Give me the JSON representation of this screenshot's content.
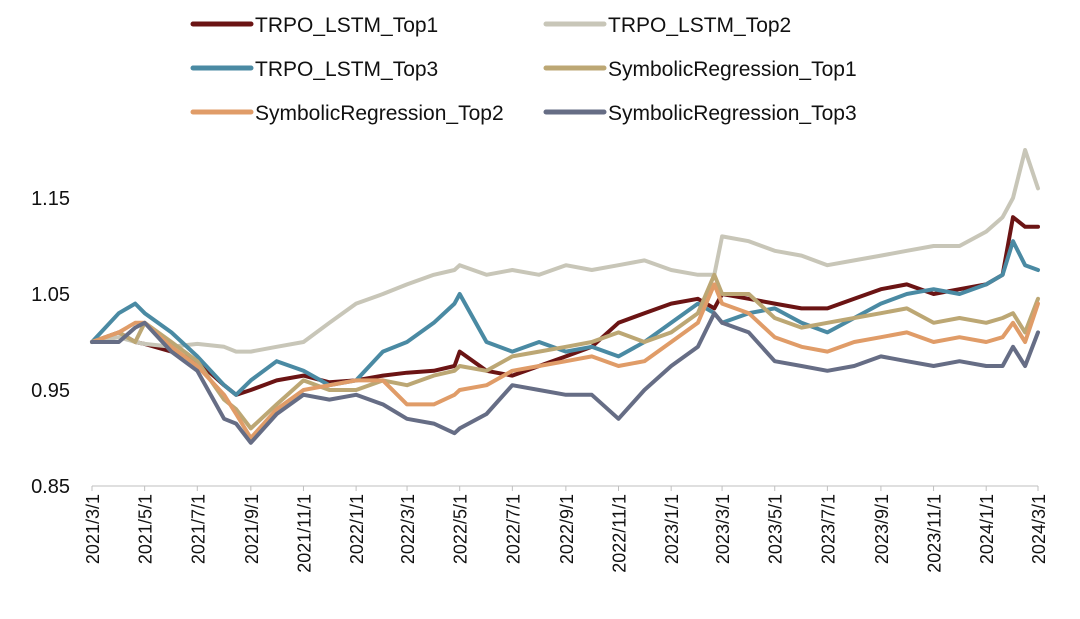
{
  "chart_data": {
    "type": "line",
    "title": "",
    "xlabel": "",
    "ylabel": "",
    "ylim": [
      0.85,
      1.2
    ],
    "y_ticks": [
      "0.85",
      "0.95",
      "1.05",
      "1.15"
    ],
    "y_tick_values": [
      0.85,
      0.95,
      1.05,
      1.15
    ],
    "x_tick_labels": [
      "2021/3/1",
      "2021/5/1",
      "2021/7/1",
      "2021/9/1",
      "2021/11/1",
      "2022/1/1",
      "2022/3/1",
      "2022/5/1",
      "2022/7/1",
      "2022/9/1",
      "2022/11/1",
      "2023/1/1",
      "2023/3/1",
      "2023/5/1",
      "2023/7/1",
      "2023/9/1",
      "2023/11/1",
      "2024/1/1",
      "2024/3/1"
    ],
    "grid": false,
    "legend_position": "top",
    "x_dates": [
      "2021/3/1",
      "2021/4/1",
      "2021/4/20",
      "2021/5/1",
      "2021/6/1",
      "2021/7/1",
      "2021/8/1",
      "2021/8/15",
      "2021/9/1",
      "2021/10/1",
      "2021/11/1",
      "2021/12/1",
      "2022/1/1",
      "2022/2/1",
      "2022/3/1",
      "2022/4/1",
      "2022/4/25",
      "2022/5/1",
      "2022/6/1",
      "2022/7/1",
      "2022/8/1",
      "2022/9/1",
      "2022/10/1",
      "2022/11/1",
      "2022/12/1",
      "2023/1/1",
      "2023/2/1",
      "2023/2/20",
      "2023/3/1",
      "2023/4/1",
      "2023/5/1",
      "2023/6/1",
      "2023/7/1",
      "2023/8/1",
      "2023/9/1",
      "2023/10/1",
      "2023/11/1",
      "2023/12/1",
      "2024/1/1",
      "2024/1/20",
      "2024/2/1",
      "2024/2/15",
      "2024/3/1"
    ],
    "series": [
      {
        "name": "TRPO_LSTM_Top1",
        "color": "#6b1414",
        "values": [
          1.0,
          1.01,
          1.0,
          0.998,
          0.99,
          0.98,
          0.955,
          0.945,
          0.95,
          0.96,
          0.965,
          0.958,
          0.96,
          0.965,
          0.968,
          0.97,
          0.975,
          0.99,
          0.97,
          0.965,
          0.975,
          0.985,
          0.995,
          1.02,
          1.03,
          1.04,
          1.045,
          1.035,
          1.05,
          1.045,
          1.04,
          1.035,
          1.035,
          1.045,
          1.055,
          1.06,
          1.05,
          1.055,
          1.06,
          1.07,
          1.13,
          1.12,
          1.12
        ]
      },
      {
        "name": "TRPO_LSTM_Top2",
        "color": "#c8c6b8",
        "values": [
          1.0,
          1.005,
          1.0,
          0.998,
          0.995,
          0.998,
          0.995,
          0.99,
          0.99,
          0.995,
          1.0,
          1.02,
          1.04,
          1.05,
          1.06,
          1.07,
          1.075,
          1.08,
          1.07,
          1.075,
          1.07,
          1.08,
          1.075,
          1.08,
          1.085,
          1.075,
          1.07,
          1.07,
          1.11,
          1.105,
          1.095,
          1.09,
          1.08,
          1.085,
          1.09,
          1.095,
          1.1,
          1.1,
          1.115,
          1.13,
          1.15,
          1.2,
          1.16
        ]
      },
      {
        "name": "TRPO_LSTM_Top3",
        "color": "#4a8aa3",
        "values": [
          1.0,
          1.03,
          1.04,
          1.03,
          1.01,
          0.985,
          0.955,
          0.945,
          0.96,
          0.98,
          0.97,
          0.955,
          0.96,
          0.99,
          1.0,
          1.02,
          1.04,
          1.05,
          1.0,
          0.99,
          1.0,
          0.99,
          0.995,
          0.985,
          1.0,
          1.02,
          1.04,
          1.03,
          1.02,
          1.03,
          1.035,
          1.02,
          1.01,
          1.025,
          1.04,
          1.05,
          1.055,
          1.05,
          1.06,
          1.07,
          1.105,
          1.08,
          1.075
        ]
      },
      {
        "name": "SymbolicRegression_Top1",
        "color": "#bca774",
        "values": [
          1.0,
          1.01,
          1.0,
          1.02,
          1.0,
          0.98,
          0.94,
          0.93,
          0.91,
          0.935,
          0.96,
          0.95,
          0.95,
          0.96,
          0.955,
          0.965,
          0.97,
          0.975,
          0.97,
          0.985,
          0.99,
          0.995,
          1.0,
          1.01,
          1.0,
          1.01,
          1.03,
          1.07,
          1.05,
          1.05,
          1.025,
          1.015,
          1.02,
          1.025,
          1.03,
          1.035,
          1.02,
          1.025,
          1.02,
          1.025,
          1.03,
          1.01,
          1.045
        ]
      },
      {
        "name": "SymbolicRegression_Top2",
        "color": "#e09c68",
        "values": [
          1.0,
          1.01,
          1.02,
          1.02,
          0.995,
          0.975,
          0.945,
          0.925,
          0.9,
          0.93,
          0.95,
          0.955,
          0.96,
          0.96,
          0.935,
          0.935,
          0.945,
          0.95,
          0.955,
          0.97,
          0.975,
          0.98,
          0.985,
          0.975,
          0.98,
          1.0,
          1.02,
          1.06,
          1.04,
          1.03,
          1.005,
          0.995,
          0.99,
          1.0,
          1.005,
          1.01,
          1.0,
          1.005,
          1.0,
          1.005,
          1.02,
          1.0,
          1.04
        ]
      },
      {
        "name": "SymbolicRegression_Top3",
        "color": "#666d85",
        "values": [
          1.0,
          1.0,
          1.015,
          1.02,
          0.99,
          0.97,
          0.92,
          0.915,
          0.895,
          0.925,
          0.945,
          0.94,
          0.945,
          0.935,
          0.92,
          0.915,
          0.905,
          0.91,
          0.925,
          0.955,
          0.95,
          0.945,
          0.945,
          0.92,
          0.95,
          0.975,
          0.995,
          1.03,
          1.02,
          1.01,
          0.98,
          0.975,
          0.97,
          0.975,
          0.985,
          0.98,
          0.975,
          0.98,
          0.975,
          0.975,
          0.995,
          0.975,
          1.01
        ]
      }
    ]
  }
}
